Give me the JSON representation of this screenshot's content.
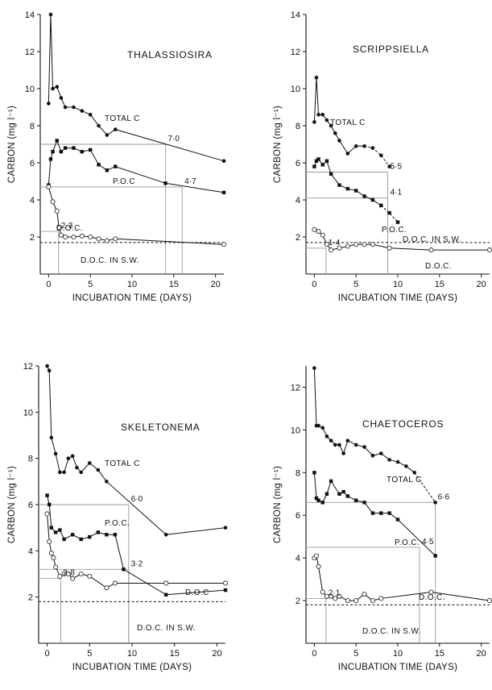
{
  "chart_data": [
    {
      "type": "line",
      "title": "THALASSIOSIRA",
      "xlabel": "INCUBATION TIME (DAYS)",
      "ylabel": "CARBON (mg l⁻¹)",
      "xlim": [
        -1,
        21
      ],
      "ylim": [
        0,
        14
      ],
      "xticks": [
        "0",
        "5",
        "10",
        "15",
        "20"
      ],
      "yticks": [
        "2",
        "4",
        "6",
        "8",
        "10",
        "12",
        "14"
      ],
      "series": [
        {
          "name": "TOTAL C",
          "marker": "filled-circle",
          "x": [
            0,
            0.25,
            0.5,
            1,
            1.5,
            2,
            3,
            4,
            5,
            6,
            7,
            8,
            21
          ],
          "y": [
            9.2,
            14,
            10,
            10.1,
            9.5,
            9.0,
            9.0,
            8.8,
            8.6,
            8.0,
            7.5,
            7.8,
            6.1
          ]
        },
        {
          "name": "P.O.C",
          "marker": "filled-square",
          "x": [
            0,
            0.25,
            0.5,
            1,
            1.5,
            2,
            3,
            4,
            5,
            6,
            7,
            8,
            14,
            21
          ],
          "y": [
            4.8,
            6.2,
            6.6,
            7.2,
            6.6,
            6.8,
            6.8,
            6.6,
            6.7,
            5.9,
            5.6,
            5.8,
            4.9,
            4.4
          ]
        },
        {
          "name": "D.O.C.",
          "marker": "open-circle",
          "x": [
            0,
            0.5,
            1,
            1.25,
            1.5,
            2,
            3,
            4,
            5,
            6,
            7,
            8,
            21
          ],
          "y": [
            4.7,
            3.9,
            3.4,
            2.5,
            2.1,
            2.0,
            2.0,
            2.05,
            2.0,
            1.9,
            1.8,
            1.9,
            1.6
          ]
        }
      ],
      "reference_line": {
        "label": "D.O.C. IN S.W.",
        "y": 1.7
      },
      "annotations": [
        {
          "text": "7·0",
          "x": 14,
          "y": 7.0
        },
        {
          "text": "4·7",
          "x": 16,
          "y": 4.7
        },
        {
          "text": "2·3",
          "x": 1.2,
          "y": 2.3
        }
      ]
    },
    {
      "type": "line",
      "title": "SCRIPPSIELLA",
      "xlabel": "INCUBATION TIME (DAYS)",
      "ylabel": "CARBON (mg l⁻¹)",
      "xlim": [
        -1,
        21
      ],
      "ylim": [
        0,
        14
      ],
      "xticks": [
        "0",
        "5",
        "10",
        "15",
        "20"
      ],
      "yticks": [
        "2",
        "4",
        "6",
        "8",
        "10",
        "12",
        "14"
      ],
      "series": [
        {
          "name": "TOTAL C",
          "marker": "filled-circle",
          "x": [
            0,
            0.25,
            0.5,
            1,
            1.5,
            2,
            2.5,
            3,
            4,
            5,
            6,
            7,
            8,
            9
          ],
          "y": [
            8.2,
            10.6,
            8.6,
            8.6,
            8.3,
            8.0,
            7.6,
            7.2,
            6.5,
            6.9,
            6.9,
            6.8,
            6.4,
            5.8
          ]
        },
        {
          "name": "P.O.C.",
          "marker": "filled-square",
          "x": [
            0,
            0.25,
            0.5,
            1,
            1.5,
            2,
            3,
            4,
            5,
            6,
            7,
            8,
            9,
            10
          ],
          "y": [
            5.8,
            6.1,
            6.2,
            5.9,
            6.1,
            5.4,
            4.8,
            4.6,
            4.5,
            4.2,
            4.0,
            3.7,
            3.3,
            2.8
          ]
        },
        {
          "name": "D.O.C.",
          "marker": "open-circle",
          "x": [
            0,
            0.5,
            1,
            1.5,
            2,
            3,
            4,
            5,
            6,
            7,
            9,
            14,
            21
          ],
          "y": [
            2.4,
            2.3,
            2.1,
            1.6,
            1.3,
            1.4,
            1.5,
            1.6,
            1.6,
            1.6,
            1.4,
            1.3,
            1.3
          ]
        }
      ],
      "reference_line": {
        "label": "D.O.C. IN S.W.",
        "y": 1.7
      },
      "annotations": [
        {
          "text": "5·5",
          "x": 8.8,
          "y": 5.5
        },
        {
          "text": "4·1",
          "x": 8.8,
          "y": 4.1
        },
        {
          "text": "1·4",
          "x": 1.4,
          "y": 1.4
        }
      ]
    },
    {
      "type": "line",
      "title": "SKELETONEMA",
      "xlabel": "INCUBATION TIME (DAYS)",
      "ylabel": "CARBON (mg l⁻¹)",
      "xlim": [
        -1,
        21
      ],
      "ylim": [
        0,
        12
      ],
      "xticks": [
        "0",
        "5",
        "10",
        "15",
        "20"
      ],
      "yticks": [
        "2",
        "4",
        "6",
        "8",
        "10",
        "12"
      ],
      "series": [
        {
          "name": "TOTAL C",
          "marker": "filled-circle",
          "x": [
            0,
            0.25,
            0.5,
            1,
            1.5,
            2,
            2.5,
            3,
            3.5,
            4,
            5,
            6,
            7,
            14,
            21
          ],
          "y": [
            12.0,
            11.8,
            8.9,
            8.2,
            7.4,
            7.4,
            8.0,
            8.1,
            7.6,
            7.4,
            7.8,
            7.5,
            7.0,
            4.7,
            5.0
          ]
        },
        {
          "name": "P.O.C.",
          "marker": "filled-square",
          "x": [
            0,
            0.25,
            0.5,
            1,
            1.5,
            2,
            3,
            4,
            5,
            6,
            7,
            8,
            9,
            14,
            21
          ],
          "y": [
            6.4,
            6.0,
            5.0,
            4.8,
            4.9,
            4.5,
            4.7,
            4.5,
            4.6,
            4.8,
            4.7,
            4.7,
            3.2,
            2.1,
            2.3
          ]
        },
        {
          "name": "D.O.C",
          "marker": "open-circle",
          "x": [
            0,
            0.25,
            0.5,
            0.75,
            1,
            1.5,
            2,
            2.5,
            3,
            4,
            5,
            7,
            8,
            14,
            21
          ],
          "y": [
            5.6,
            4.4,
            3.9,
            3.7,
            3.3,
            2.9,
            3.0,
            3.0,
            2.8,
            3.0,
            2.9,
            2.4,
            2.6,
            2.6,
            2.6
          ]
        }
      ],
      "reference_line": {
        "label": "D.O.C. IN S.W.",
        "y": 1.8
      },
      "annotations": [
        {
          "text": "6·0",
          "x": 9.6,
          "y": 6.0
        },
        {
          "text": "3·2",
          "x": 9.6,
          "y": 3.2
        },
        {
          "text": "2·8",
          "x": 1.6,
          "y": 2.8
        }
      ]
    },
    {
      "type": "line",
      "title": "CHAETOCEROS",
      "xlabel": "INCUBATION TIME (DAYS)",
      "ylabel": "CARBON (mg l⁻¹)",
      "xlim": [
        -1,
        21
      ],
      "ylim": [
        0,
        13
      ],
      "xticks": [
        "0",
        "5",
        "10",
        "15",
        "20"
      ],
      "yticks": [
        "2",
        "4",
        "6",
        "8",
        "10",
        "12"
      ],
      "series": [
        {
          "name": "TOTAL C",
          "marker": "filled-circle",
          "x": [
            0,
            0.25,
            0.5,
            1,
            1.5,
            2,
            2.5,
            3,
            3.5,
            4,
            5,
            6,
            7,
            8,
            9,
            10,
            11,
            12,
            14.5
          ],
          "y": [
            12.9,
            10.2,
            10.2,
            10.1,
            9.7,
            9.5,
            9.3,
            9.3,
            8.9,
            9.5,
            9.3,
            9.2,
            8.8,
            8.9,
            8.6,
            8.5,
            8.3,
            8.0,
            6.6
          ]
        },
        {
          "name": "P.O.C.",
          "marker": "filled-square",
          "x": [
            0,
            0.25,
            0.5,
            1,
            1.5,
            2,
            3,
            3.5,
            4,
            5,
            6,
            7,
            8,
            9,
            10,
            14.5
          ],
          "y": [
            8.0,
            6.8,
            6.7,
            6.6,
            7.0,
            7.6,
            7.0,
            7.1,
            6.9,
            6.7,
            6.6,
            6.1,
            6.1,
            6.1,
            5.8,
            4.1
          ]
        },
        {
          "name": "D.O.C.",
          "marker": "open-circle",
          "x": [
            0,
            0.25,
            0.5,
            1,
            1.5,
            2,
            2.5,
            3,
            4,
            5,
            6,
            7,
            8,
            14,
            21
          ],
          "y": [
            4.0,
            4.1,
            3.6,
            2.4,
            2.2,
            2.2,
            2.1,
            2.2,
            2.0,
            2.0,
            2.3,
            2.0,
            2.1,
            2.4,
            2.0
          ]
        }
      ],
      "reference_line": {
        "label": "D.O.C. IN S.W.",
        "y": 1.8
      },
      "annotations": [
        {
          "text": "6·6",
          "x": 14.5,
          "y": 6.6
        },
        {
          "text": "4·5",
          "x": 12.6,
          "y": 4.5
        },
        {
          "text": "2·1",
          "x": 1.4,
          "y": 2.1
        }
      ]
    }
  ]
}
